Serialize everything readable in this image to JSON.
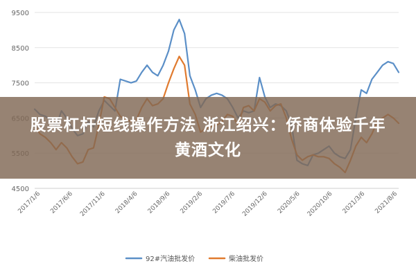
{
  "chart_data": {
    "type": "line",
    "title": "",
    "xlabel": "",
    "ylabel": "",
    "ylim": [
      4500,
      9500
    ],
    "y_ticks": [
      9500,
      8500,
      7500,
      6500,
      5500,
      4500
    ],
    "x_ticks": [
      "2017/1/6",
      "2017/6/6",
      "2017/11/6",
      "2018/4/6",
      "2018/9/6",
      "2019/2/6",
      "2019/7/6",
      "2019/12/6",
      "2020/5/6",
      "2020/10/6",
      "2021/3/6",
      "2021/8/6"
    ],
    "grid": true,
    "legend_position": "bottom",
    "series": [
      {
        "name": "92#汽油批发价",
        "color": "#5b8fc7",
        "points": [
          [
            0,
            6750
          ],
          [
            1,
            6600
          ],
          [
            2,
            6550
          ],
          [
            3,
            6450
          ],
          [
            4,
            6250
          ],
          [
            5,
            6700
          ],
          [
            6,
            6500
          ],
          [
            7,
            6200
          ],
          [
            8,
            6000
          ],
          [
            9,
            6050
          ],
          [
            10,
            6400
          ],
          [
            11,
            6250
          ],
          [
            12,
            6700
          ],
          [
            13,
            7000
          ],
          [
            14,
            6850
          ],
          [
            15,
            6700
          ],
          [
            16,
            7600
          ],
          [
            17,
            7550
          ],
          [
            18,
            7500
          ],
          [
            19,
            7550
          ],
          [
            20,
            7800
          ],
          [
            21,
            8000
          ],
          [
            22,
            7800
          ],
          [
            23,
            7700
          ],
          [
            24,
            8000
          ],
          [
            25,
            8400
          ],
          [
            26,
            9000
          ],
          [
            27,
            9300
          ],
          [
            28,
            8900
          ],
          [
            29,
            7700
          ],
          [
            30,
            7300
          ],
          [
            31,
            6800
          ],
          [
            32,
            7050
          ],
          [
            33,
            7150
          ],
          [
            34,
            7200
          ],
          [
            35,
            7150
          ],
          [
            36,
            7050
          ],
          [
            37,
            6800
          ],
          [
            38,
            6500
          ],
          [
            39,
            6700
          ],
          [
            40,
            6650
          ],
          [
            41,
            6700
          ],
          [
            42,
            7650
          ],
          [
            43,
            7100
          ],
          [
            44,
            6800
          ],
          [
            45,
            6900
          ],
          [
            46,
            6850
          ],
          [
            47,
            6700
          ],
          [
            48,
            6300
          ],
          [
            49,
            5300
          ],
          [
            50,
            5200
          ],
          [
            51,
            5150
          ],
          [
            52,
            5450
          ],
          [
            53,
            5500
          ],
          [
            54,
            5600
          ],
          [
            55,
            5700
          ],
          [
            56,
            5500
          ],
          [
            57,
            5400
          ],
          [
            58,
            5350
          ],
          [
            59,
            5600
          ],
          [
            60,
            6500
          ],
          [
            61,
            7300
          ],
          [
            62,
            7200
          ],
          [
            63,
            7600
          ],
          [
            64,
            7800
          ],
          [
            65,
            8000
          ],
          [
            66,
            8100
          ],
          [
            67,
            8050
          ],
          [
            68,
            7800
          ]
        ]
      },
      {
        "name": "柴油批发价",
        "color": "#e07a2e",
        "points": [
          [
            0,
            6300
          ],
          [
            1,
            6050
          ],
          [
            2,
            5950
          ],
          [
            3,
            5800
          ],
          [
            4,
            5600
          ],
          [
            5,
            5800
          ],
          [
            6,
            5650
          ],
          [
            7,
            5400
          ],
          [
            8,
            5200
          ],
          [
            9,
            5250
          ],
          [
            10,
            5600
          ],
          [
            11,
            5650
          ],
          [
            12,
            6300
          ],
          [
            13,
            7100
          ],
          [
            14,
            7050
          ],
          [
            15,
            6800
          ],
          [
            16,
            6550
          ],
          [
            17,
            6450
          ],
          [
            18,
            6400
          ],
          [
            19,
            6450
          ],
          [
            20,
            6800
          ],
          [
            21,
            7050
          ],
          [
            22,
            6850
          ],
          [
            23,
            6900
          ],
          [
            24,
            7050
          ],
          [
            25,
            7500
          ],
          [
            26,
            7900
          ],
          [
            27,
            8250
          ],
          [
            28,
            8000
          ],
          [
            29,
            6900
          ],
          [
            30,
            6600
          ],
          [
            31,
            6100
          ],
          [
            32,
            6200
          ],
          [
            33,
            6250
          ],
          [
            34,
            6300
          ],
          [
            35,
            6400
          ],
          [
            36,
            6600
          ],
          [
            37,
            6550
          ],
          [
            38,
            6300
          ],
          [
            39,
            6800
          ],
          [
            40,
            6850
          ],
          [
            41,
            6700
          ],
          [
            42,
            7050
          ],
          [
            43,
            6950
          ],
          [
            44,
            6700
          ],
          [
            45,
            6850
          ],
          [
            46,
            6900
          ],
          [
            47,
            6500
          ],
          [
            48,
            5900
          ],
          [
            49,
            5450
          ],
          [
            50,
            5300
          ],
          [
            51,
            5400
          ],
          [
            52,
            5450
          ],
          [
            53,
            5400
          ],
          [
            54,
            5400
          ],
          [
            55,
            5350
          ],
          [
            56,
            5200
          ],
          [
            57,
            5100
          ],
          [
            58,
            4950
          ],
          [
            59,
            5300
          ],
          [
            60,
            5700
          ],
          [
            61,
            5950
          ],
          [
            62,
            5800
          ],
          [
            63,
            6050
          ],
          [
            64,
            6400
          ],
          [
            65,
            6500
          ],
          [
            66,
            6600
          ],
          [
            67,
            6500
          ],
          [
            68,
            6350
          ]
        ]
      }
    ]
  },
  "overlay": {
    "line1": "股票杠杆短线操作方法 浙江绍兴：侨商体验千年",
    "line2": "黄酒文化"
  }
}
